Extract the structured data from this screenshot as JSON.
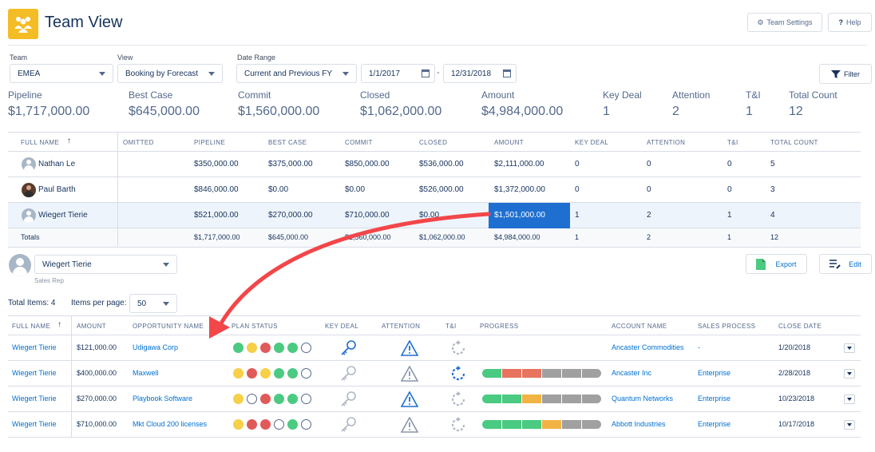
{
  "app": {
    "title": "Team View",
    "icon": "team-icon"
  },
  "header": {
    "settings_label": "Team Settings",
    "help_label": "Help"
  },
  "filters": {
    "team_label": "Team",
    "team_value": "EMEA",
    "view_label": "View",
    "view_value": "Booking by Forecast",
    "date_label": "Date Range",
    "date_value": "Current and Previous FY",
    "start_date": "1/1/2017",
    "dash": "-",
    "end_date": "12/31/2018",
    "filter_label": "Filter"
  },
  "summary": [
    {
      "label": "Pipeline",
      "value": "$1,717,000.00"
    },
    {
      "label": "Best Case",
      "value": "$645,000.00"
    },
    {
      "label": "Commit",
      "value": "$1,560,000.00"
    },
    {
      "label": "Closed",
      "value": "$1,062,000.00"
    },
    {
      "label": "Amount",
      "value": "$4,984,000.00"
    },
    {
      "label": "Key Deal",
      "value": "1"
    },
    {
      "label": "Attention",
      "value": "2"
    },
    {
      "label": "T&I",
      "value": "1"
    },
    {
      "label": "Total Count",
      "value": "12"
    }
  ],
  "team_table": {
    "headers": [
      "FULL NAME",
      "OMITTED",
      "PIPELINE",
      "BEST CASE",
      "COMMIT",
      "CLOSED",
      "AMOUNT",
      "KEY DEAL",
      "ATTENTION",
      "T&I",
      "TOTAL COUNT"
    ],
    "rows": [
      {
        "name": "Nathan Le",
        "omitted": "",
        "pipeline": "$350,000.00",
        "best_case": "$375,000.00",
        "commit": "$850,000.00",
        "closed": "$536,000.00",
        "amount": "$2,111,000.00",
        "key_deal": "0",
        "attention": "0",
        "ti": "0",
        "total": "5"
      },
      {
        "name": "Paul Barth",
        "omitted": "",
        "pipeline": "$846,000.00",
        "best_case": "$0.00",
        "commit": "$0.00",
        "closed": "$526,000.00",
        "amount": "$1,372,000.00",
        "key_deal": "0",
        "attention": "0",
        "ti": "0",
        "total": "3"
      },
      {
        "name": "Wiegert Tierie",
        "omitted": "",
        "pipeline": "$521,000.00",
        "best_case": "$270,000.00",
        "commit": "$710,000.00",
        "closed": "$0.00",
        "amount": "$1,501,000.00",
        "key_deal": "1",
        "attention": "2",
        "ti": "1",
        "total": "4"
      }
    ],
    "totals": {
      "label": "Totals",
      "pipeline": "$1,717,000.00",
      "best_case": "$645,000.00",
      "commit": "$1,560,000.00",
      "closed": "$1,062,000.00",
      "amount": "$4,984,000.00",
      "key_deal": "1",
      "attention": "2",
      "ti": "1",
      "total": "12"
    }
  },
  "rep": {
    "name": "Wiegert Tierie",
    "role": "Sales Rep",
    "export_label": "Export",
    "edit_label": "Edit"
  },
  "paging": {
    "total_items": "Total Items: 4",
    "per_page_label": "Items per page:",
    "per_page_value": "50"
  },
  "opp_table": {
    "headers": [
      "FULL NAME",
      "AMOUNT",
      "OPPORTUNITY NAME",
      "PLAN STATUS",
      "KEY DEAL",
      "ATTENTION",
      "T&I",
      "PROGRESS",
      "ACCOUNT NAME",
      "SALES PROCESS",
      "CLOSE DATE"
    ],
    "rows": [
      {
        "name": "Wiegert Tierie",
        "amount": "$121,000.00",
        "opportunity": "Udigawa Corp",
        "plan": [
          "g",
          "y",
          "r",
          "g",
          "g",
          "o"
        ],
        "key_deal": true,
        "attention": true,
        "ti": false,
        "progress": [],
        "account": "Ancaster Commodities",
        "process": "-",
        "close": "1/20/2018"
      },
      {
        "name": "Wiegert Tierie",
        "amount": "$400,000.00",
        "opportunity": "Maxwell",
        "plan": [
          "y",
          "r",
          "y",
          "g",
          "g",
          "o"
        ],
        "key_deal": false,
        "attention": false,
        "ti": true,
        "progress": [
          "g",
          "r",
          "r",
          "gr",
          "gr",
          "gr"
        ],
        "account": "Ancaster Inc",
        "process": "Enterprise",
        "close": "2/28/2018"
      },
      {
        "name": "Wiegert Tierie",
        "amount": "$270,000.00",
        "opportunity": "Playbook Software",
        "plan": [
          "y",
          "o",
          "r",
          "g",
          "g",
          "o"
        ],
        "key_deal": false,
        "attention": true,
        "ti": false,
        "progress": [
          "g",
          "g",
          "y",
          "gr",
          "gr",
          "gr"
        ],
        "account": "Quantum Networks",
        "process": "Enterprise",
        "close": "10/23/2018"
      },
      {
        "name": "Wiegert Tierie",
        "amount": "$710,000.00",
        "opportunity": "Mkt Cloud 200 licenses",
        "plan": [
          "y",
          "r",
          "r",
          "o",
          "g",
          "o"
        ],
        "key_deal": false,
        "attention": false,
        "ti": false,
        "progress": [
          "g",
          "g",
          "g",
          "y",
          "gr",
          "gr"
        ],
        "account": "Abbott Industries",
        "process": "Enterprise",
        "close": "10/17/2018"
      }
    ]
  },
  "colors": {
    "brand": "#f4bc25",
    "highlight": "#1f6fd1",
    "arrow": "#f24649",
    "link": "#0070d2"
  }
}
